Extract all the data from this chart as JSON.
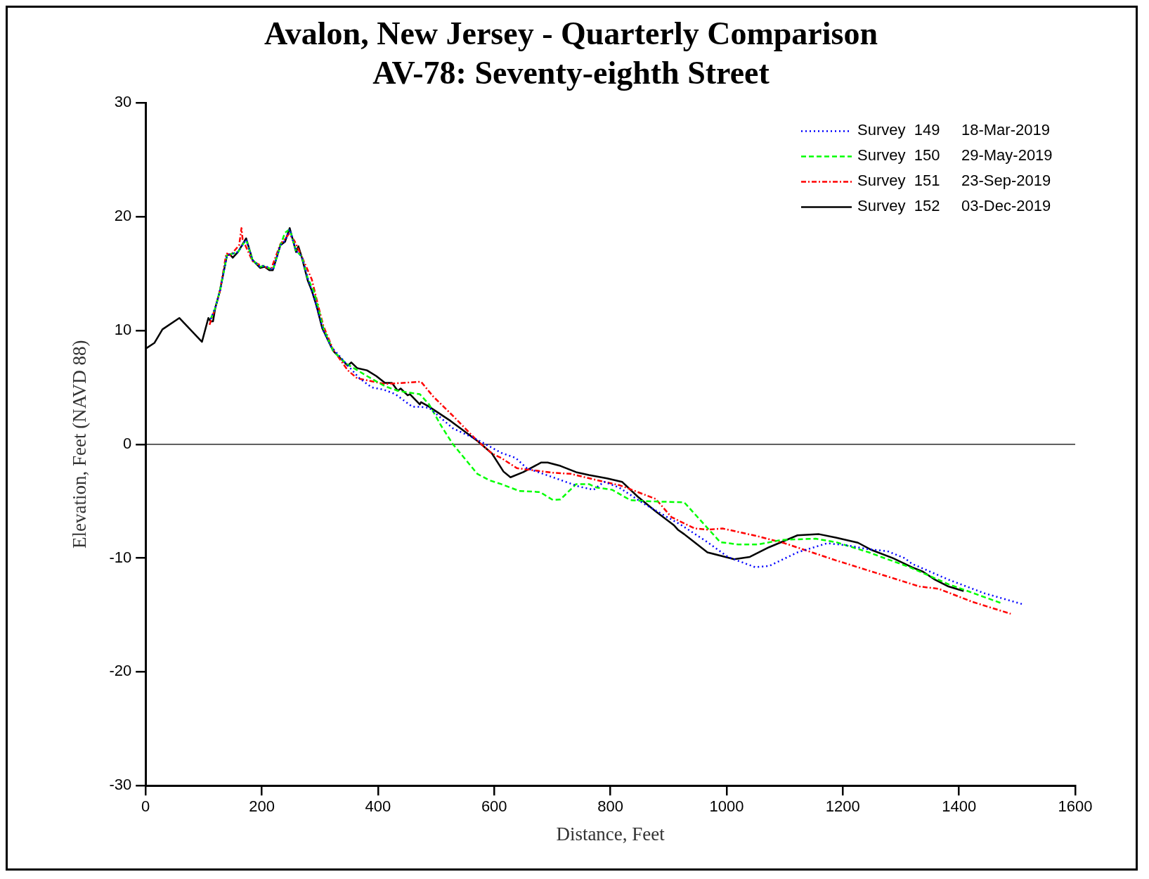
{
  "chart_data": {
    "type": "line",
    "title": "Avalon, New Jersey - Quarterly Comparison",
    "subtitle": "AV-78: Seventy-eighth Street",
    "xlabel": "Distance, Feet",
    "ylabel": "Elevation, Feet (NAVD 88)",
    "xlim": [
      0,
      1600
    ],
    "xticks": [
      0,
      200,
      400,
      600,
      800,
      1000,
      1200,
      1400,
      1600
    ],
    "ylim": [
      -30,
      30
    ],
    "yticks": [
      -30,
      -20,
      -10,
      0,
      10,
      20,
      30
    ],
    "grid": false,
    "legend": "top right",
    "marker": "none",
    "ref_lines": [
      {
        "axis": "y",
        "value": 0,
        "color": "#000000"
      }
    ],
    "series": [
      {
        "name": "Survey  149     18-Mar-2019",
        "color": "#0000ff",
        "line_style": "dotted",
        "x": [
          112,
          120,
          128,
          140,
          146,
          159,
          173,
          184,
          197,
          205,
          219,
          232,
          240,
          248,
          259,
          269,
          279,
          290,
          306,
          319,
          345,
          368,
          389,
          410,
          430,
          459,
          472,
          488,
          529,
          571,
          612,
          637,
          656,
          701,
          745,
          771,
          789,
          815,
          860,
          922,
          967,
          1002,
          1049,
          1073,
          1122,
          1173,
          1210,
          1241,
          1277,
          1306,
          1319,
          1382,
          1444,
          1509
        ],
        "values": [
          11.0,
          12.0,
          13.5,
          16.6,
          16.7,
          16.9,
          18.0,
          16.2,
          15.6,
          15.7,
          15.3,
          17.5,
          17.9,
          18.9,
          17.0,
          16.5,
          14.6,
          12.9,
          10.0,
          8.6,
          7.1,
          5.8,
          5.0,
          4.8,
          4.4,
          3.3,
          3.3,
          3.2,
          1.4,
          0.4,
          -0.75,
          -1.2,
          -2.1,
          -2.9,
          -3.7,
          -4.0,
          -3.3,
          -3.8,
          -5.3,
          -7.1,
          -8.6,
          -9.9,
          -10.8,
          -10.7,
          -9.5,
          -8.7,
          -8.9,
          -9.2,
          -9.4,
          -10.0,
          -10.5,
          -11.9,
          -13.1,
          -14.05
        ]
      },
      {
        "name": "Survey  150     29-May-2019",
        "color": "#00ff00",
        "line_style": "dashed",
        "x": [
          112,
          120,
          128,
          140,
          146,
          159,
          173,
          184,
          197,
          205,
          219,
          232,
          240,
          248,
          259,
          269,
          279,
          290,
          306,
          323,
          345,
          381,
          412,
          434,
          459,
          472,
          488,
          509,
          529,
          571,
          591,
          612,
          643,
          679,
          701,
          714,
          741,
          763,
          776,
          803,
          834,
          860,
          927,
          989,
          1020,
          1055,
          1095,
          1122,
          1153,
          1188,
          1245,
          1266,
          1315,
          1382,
          1472
        ],
        "values": [
          11.0,
          12.0,
          13.5,
          16.6,
          16.7,
          16.9,
          18.0,
          16.2,
          15.6,
          15.7,
          15.3,
          17.5,
          18.6,
          18.9,
          17.0,
          16.5,
          14.6,
          13.4,
          10.2,
          8.2,
          7.1,
          6.0,
          5.1,
          4.7,
          4.5,
          4.4,
          3.5,
          1.6,
          0.0,
          -2.6,
          -3.15,
          -3.5,
          -4.1,
          -4.2,
          -4.9,
          -4.85,
          -3.5,
          -3.5,
          -3.8,
          -4.0,
          -4.9,
          -5.0,
          -5.1,
          -8.6,
          -8.8,
          -8.8,
          -8.4,
          -8.35,
          -8.3,
          -8.6,
          -9.5,
          -9.9,
          -10.8,
          -12.3,
          -13.95
        ]
      },
      {
        "name": "Survey  151     23-Sep-2019",
        "color": "#ff0000",
        "line_style": "dashdot",
        "x": [
          110,
          120,
          128,
          139,
          146,
          161,
          165,
          167,
          184,
          195,
          205,
          216,
          232,
          247,
          256,
          267,
          286,
          296,
          306,
          323,
          348,
          364,
          412,
          474,
          495,
          529,
          571,
          596,
          612,
          639,
          701,
          732,
          789,
          816,
          878,
          905,
          945,
          967,
          993,
          1055,
          1100,
          1188,
          1257,
          1332,
          1365,
          1423,
          1489
        ],
        "values": [
          10.5,
          12.0,
          13.5,
          16.8,
          16.6,
          17.5,
          19.0,
          18.0,
          16.1,
          15.8,
          15.6,
          15.4,
          17.6,
          18.5,
          17.9,
          16.7,
          14.5,
          12.4,
          10.4,
          8.3,
          6.5,
          5.8,
          5.3,
          5.5,
          4.2,
          2.5,
          0.3,
          -0.8,
          -1.2,
          -2.1,
          -2.5,
          -2.6,
          -3.3,
          -3.6,
          -4.8,
          -6.4,
          -7.4,
          -7.5,
          -7.4,
          -8.1,
          -8.7,
          -10.2,
          -11.3,
          -12.5,
          -12.7,
          -13.85,
          -14.9
        ]
      },
      {
        "name": "Survey  152     03-Dec-2019",
        "color": "#000000",
        "line_style": "solid",
        "x": [
          0,
          15,
          29,
          58,
          97,
          108,
          112,
          116,
          120,
          128,
          140,
          145,
          150,
          159,
          173,
          184,
          197,
          205,
          213,
          219,
          232,
          240,
          248,
          259,
          263,
          269,
          279,
          286,
          294,
          304,
          323,
          348,
          354,
          364,
          381,
          397,
          412,
          424,
          434,
          439,
          451,
          455,
          472,
          474,
          488,
          525,
          571,
          596,
          616,
          628,
          650,
          681,
          692,
          714,
          741,
          763,
          794,
          820,
          847,
          878,
          909,
          916,
          927,
          967,
          1013,
          1040,
          1073,
          1122,
          1159,
          1188,
          1226,
          1250,
          1286,
          1319,
          1338,
          1357,
          1382,
          1408
        ],
        "values": [
          8.4,
          8.9,
          10.1,
          11.1,
          9.0,
          11.1,
          10.8,
          10.8,
          12.0,
          13.5,
          16.6,
          16.7,
          16.4,
          16.9,
          18.1,
          16.2,
          15.5,
          15.6,
          15.3,
          15.3,
          17.5,
          17.8,
          19.0,
          16.9,
          17.4,
          16.4,
          14.4,
          13.5,
          12.2,
          10.2,
          8.2,
          6.9,
          7.2,
          6.7,
          6.5,
          6.0,
          5.4,
          5.4,
          4.7,
          4.9,
          4.3,
          4.4,
          3.5,
          3.7,
          3.3,
          2.05,
          0.3,
          -0.8,
          -2.4,
          -2.9,
          -2.45,
          -1.6,
          -1.6,
          -1.9,
          -2.45,
          -2.7,
          -3.0,
          -3.3,
          -4.6,
          -5.9,
          -7.1,
          -7.5,
          -7.9,
          -9.5,
          -10.1,
          -9.9,
          -9.05,
          -8.0,
          -7.9,
          -8.2,
          -8.65,
          -9.3,
          -10.0,
          -10.8,
          -11.2,
          -11.85,
          -12.5,
          -12.9
        ]
      }
    ]
  }
}
